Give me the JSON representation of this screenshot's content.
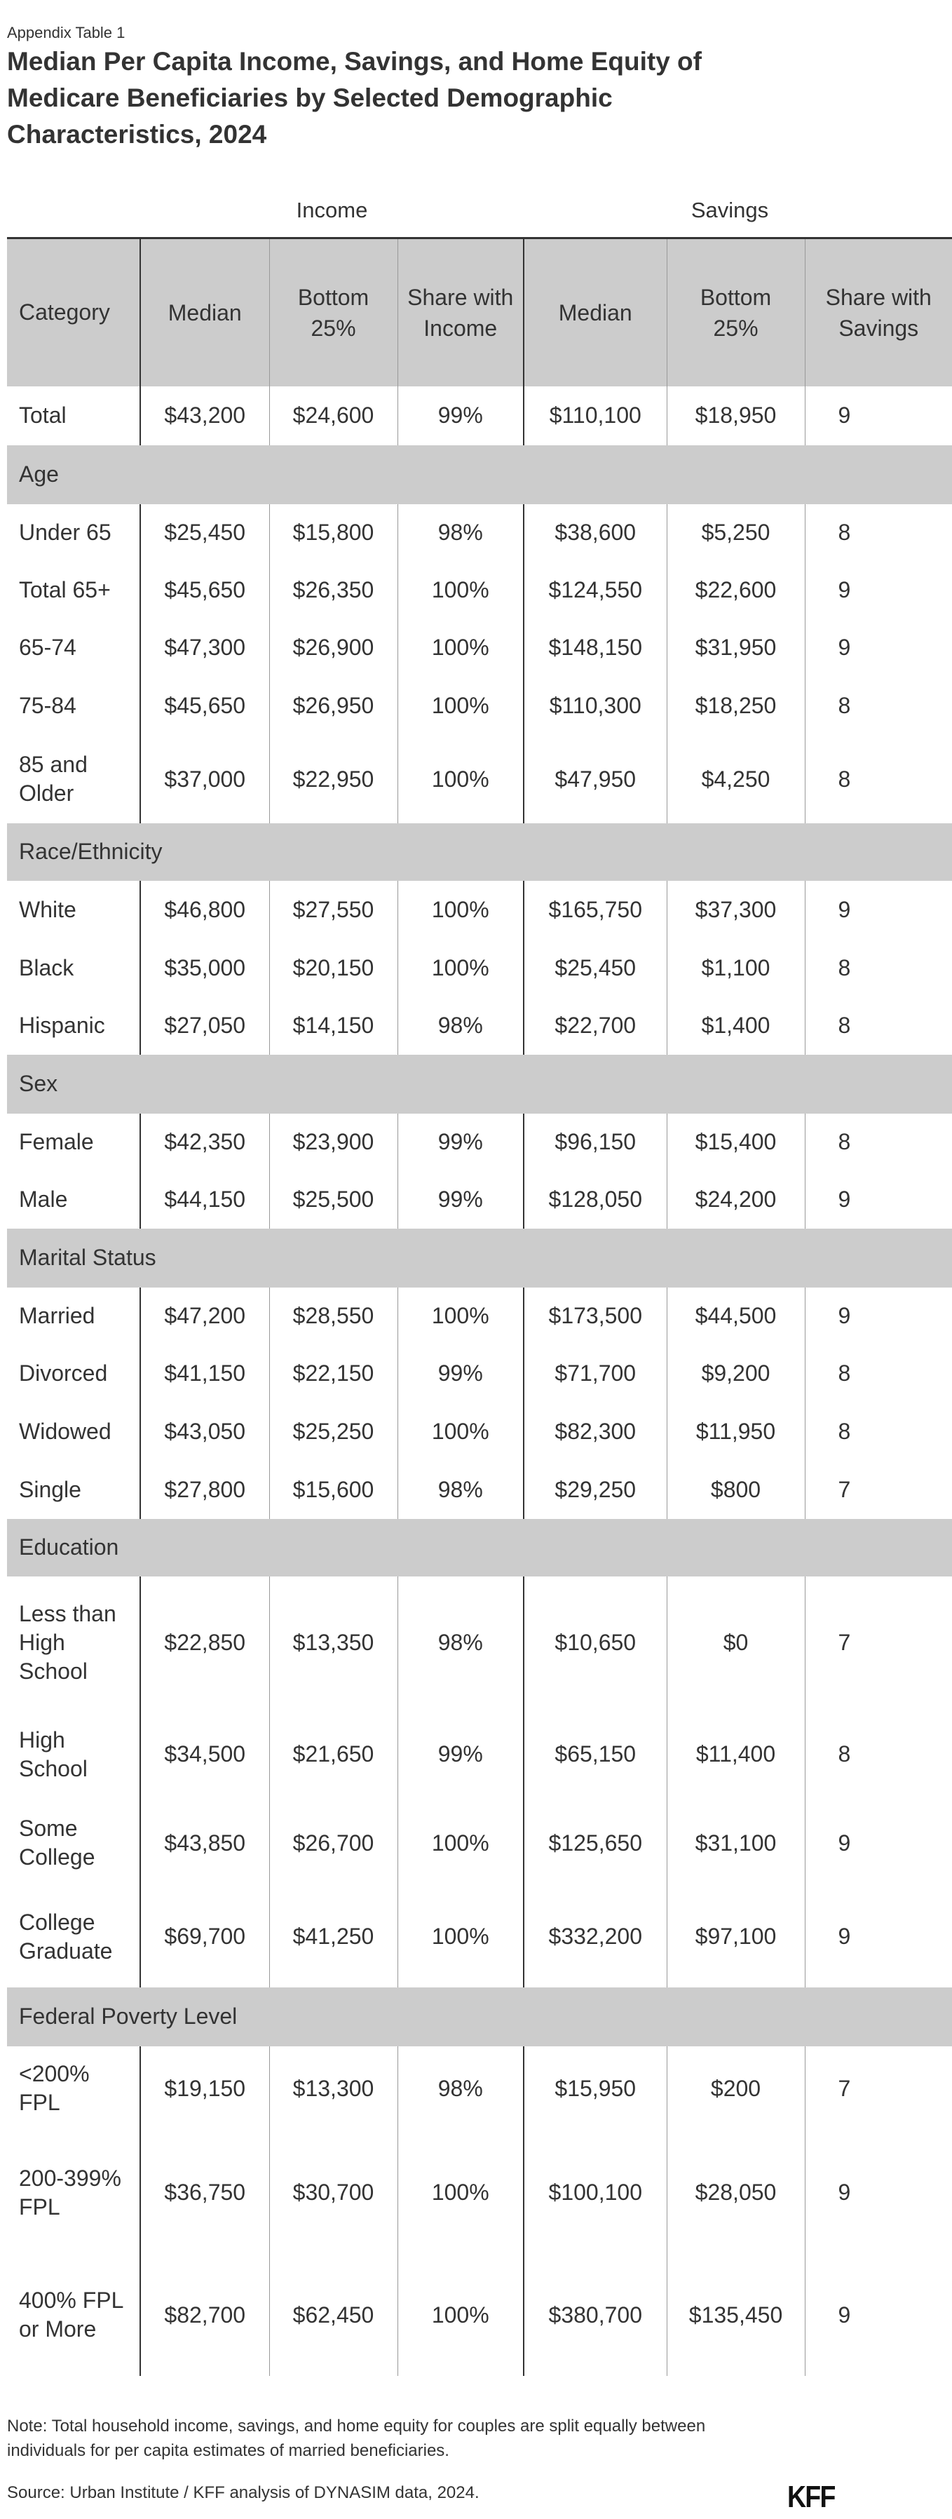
{
  "eyebrow": "Appendix Table 1",
  "title": "Median Per Capita Income, Savings, and Home Equity of Medicare Beneficiaries by Selected Demographic Characteristics, 2024",
  "groups": {
    "income": "Income",
    "savings": "Savings"
  },
  "columns": [
    "Category",
    "Median",
    "Bottom 25%",
    "Share with Income",
    "Median",
    "Bottom 25%",
    "Share with Savings"
  ],
  "rows": [
    {
      "type": "data",
      "cells": [
        "Total",
        "$43,200",
        "$24,600",
        "99%",
        "$110,100",
        "$18,950",
        "9"
      ]
    },
    {
      "type": "section",
      "label": "Age"
    },
    {
      "type": "data",
      "cells": [
        "Under 65",
        "$25,450",
        "$15,800",
        "98%",
        "$38,600",
        "$5,250",
        "8"
      ]
    },
    {
      "type": "data",
      "cells": [
        "Total 65+",
        "$45,650",
        "$26,350",
        "100%",
        "$124,550",
        "$22,600",
        "9"
      ]
    },
    {
      "type": "data",
      "cells": [
        "65-74",
        "$47,300",
        "$26,900",
        "100%",
        "$148,150",
        "$31,950",
        "9"
      ]
    },
    {
      "type": "data",
      "cells": [
        "75-84",
        "$45,650",
        "$26,950",
        "100%",
        "$110,300",
        "$18,250",
        "8"
      ]
    },
    {
      "type": "data",
      "cells": [
        "85 and Older",
        "$37,000",
        "$22,950",
        "100%",
        "$47,950",
        "$4,250",
        "8"
      ]
    },
    {
      "type": "section",
      "label": "Race/Ethnicity"
    },
    {
      "type": "data",
      "cells": [
        "White",
        "$46,800",
        "$27,550",
        "100%",
        "$165,750",
        "$37,300",
        "9"
      ]
    },
    {
      "type": "data",
      "cells": [
        "Black",
        "$35,000",
        "$20,150",
        "100%",
        "$25,450",
        "$1,100",
        "8"
      ]
    },
    {
      "type": "data",
      "cells": [
        "Hispanic",
        "$27,050",
        "$14,150",
        "98%",
        "$22,700",
        "$1,400",
        "8"
      ]
    },
    {
      "type": "section",
      "label": "Sex"
    },
    {
      "type": "data",
      "cells": [
        "Female",
        "$42,350",
        "$23,900",
        "99%",
        "$96,150",
        "$15,400",
        "8"
      ]
    },
    {
      "type": "data",
      "cells": [
        "Male",
        "$44,150",
        "$25,500",
        "99%",
        "$128,050",
        "$24,200",
        "9"
      ]
    },
    {
      "type": "section",
      "label": "Marital Status"
    },
    {
      "type": "data",
      "cells": [
        "Married",
        "$47,200",
        "$28,550",
        "100%",
        "$173,500",
        "$44,500",
        "9"
      ]
    },
    {
      "type": "data",
      "cells": [
        "Divorced",
        "$41,150",
        "$22,150",
        "99%",
        "$71,700",
        "$9,200",
        "8"
      ]
    },
    {
      "type": "data",
      "cells": [
        "Widowed",
        "$43,050",
        "$25,250",
        "100%",
        "$82,300",
        "$11,950",
        "8"
      ]
    },
    {
      "type": "data",
      "cells": [
        "Single",
        "$27,800",
        "$15,600",
        "98%",
        "$29,250",
        "$800",
        "7"
      ]
    },
    {
      "type": "section",
      "label": "Education"
    },
    {
      "type": "data",
      "cells": [
        "Less than High School",
        "$22,850",
        "$13,350",
        "98%",
        "$10,650",
        "$0",
        "7"
      ]
    },
    {
      "type": "data",
      "cells": [
        "High School",
        "$34,500",
        "$21,650",
        "99%",
        "$65,150",
        "$11,400",
        "8"
      ]
    },
    {
      "type": "data",
      "cells": [
        "Some College",
        "$43,850",
        "$26,700",
        "100%",
        "$125,650",
        "$31,100",
        "9"
      ]
    },
    {
      "type": "data",
      "cells": [
        "College Graduate",
        "$69,700",
        "$41,250",
        "100%",
        "$332,200",
        "$97,100",
        "9"
      ]
    },
    {
      "type": "section",
      "label": "Federal Poverty Level"
    },
    {
      "type": "data",
      "cells": [
        "<200% FPL",
        "$19,150",
        "$13,300",
        "98%",
        "$15,950",
        "$200",
        "7"
      ]
    },
    {
      "type": "data",
      "cells": [
        "200-399% FPL",
        "$36,750",
        "$30,700",
        "100%",
        "$100,100",
        "$28,050",
        "9"
      ]
    },
    {
      "type": "data",
      "cells": [
        "400% FPL or More",
        "$82,700",
        "$62,450",
        "100%",
        "$380,700",
        "$135,450",
        "9"
      ]
    }
  ],
  "note": "Note: Total household income, savings, and home equity for couples are split equally between individuals for per capita estimates of married beneficiaries.",
  "source": "Source: Urban Institute / KFF analysis of DYNASIM data, 2024.",
  "logo": "KFF",
  "colors": {
    "header_bg": "#cccccc",
    "text": "#333333",
    "rule": "#333333"
  }
}
